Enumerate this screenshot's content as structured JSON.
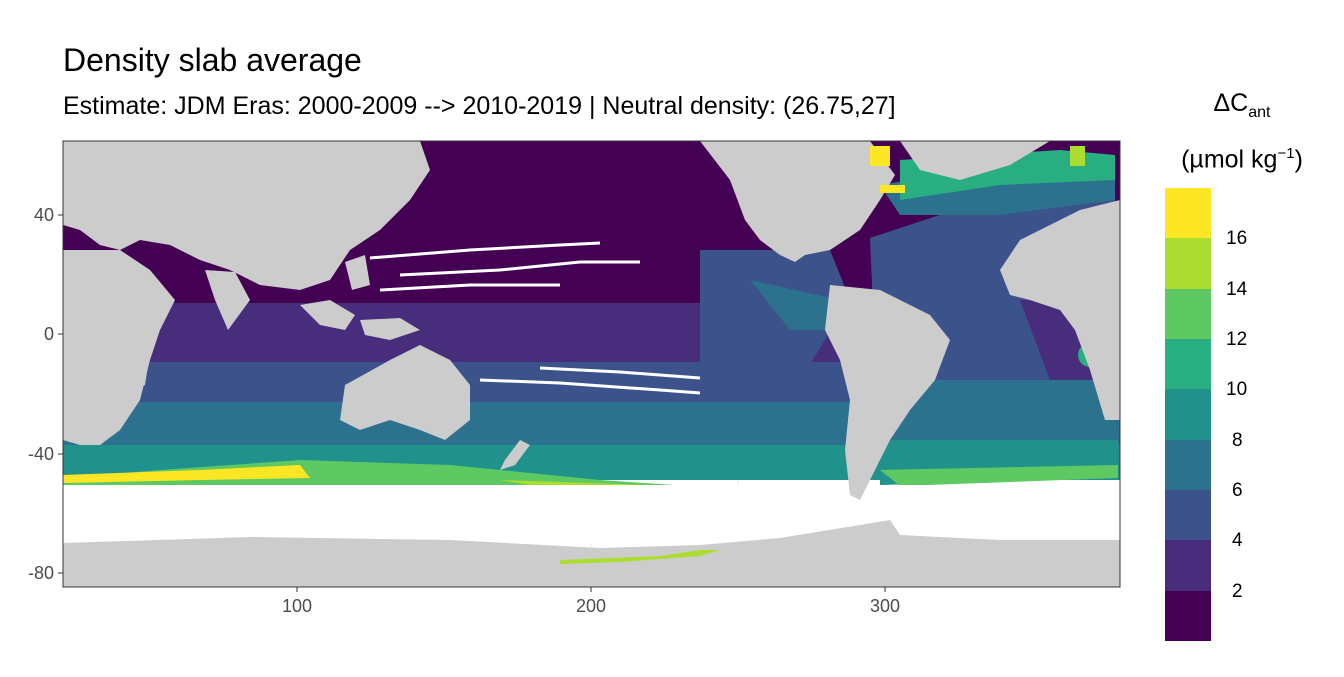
{
  "title": "Density slab average",
  "subtitle": "Estimate: JDM Eras: 2000-2009 --> 2010-2019 | Neutral density: (26.75,27]",
  "axes": {
    "x_ticks": [
      "100",
      "200",
      "300"
    ],
    "y_ticks": [
      "40",
      "0",
      "-40",
      "-80"
    ]
  },
  "legend": {
    "title_symbol": "ΔC",
    "title_sub": "ant",
    "unit_base": "(µmol kg",
    "unit_exp": "−1",
    "unit_close": ")",
    "labels": [
      "16",
      "14",
      "12",
      "10",
      "8",
      "6",
      "4",
      "2"
    ],
    "colors_top_to_bottom": [
      "#fde725",
      "#addc30",
      "#5ec962",
      "#28ae80",
      "#21918c",
      "#2c728e",
      "#3b528b",
      "#472d7b",
      "#440154"
    ]
  },
  "map": {
    "x_range": [
      20,
      380
    ],
    "y_range": [
      -85,
      65
    ],
    "land_color": "#cccccc",
    "nodata_color": "#ffffff",
    "background_color": "#ffffff"
  }
}
